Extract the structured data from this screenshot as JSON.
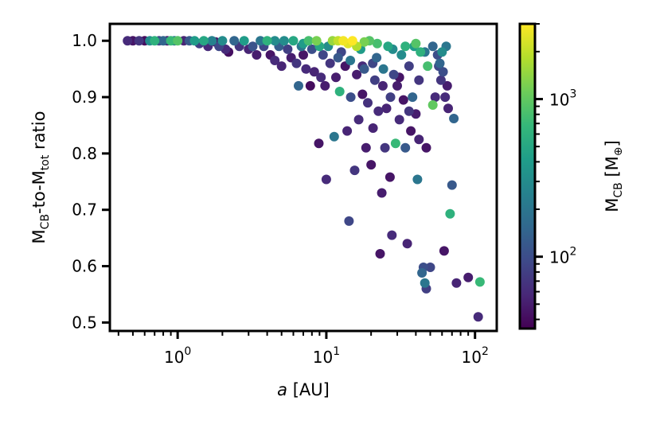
{
  "chart_data": {
    "type": "scatter",
    "title": "",
    "xlabel_italic": "a",
    "xlabel_rest": " [AU]",
    "ylabel_parts": {
      "m1": "M",
      "sub1": "CB",
      "mid": "-to-M",
      "sub2": "tot",
      "end": " ratio"
    },
    "colorbar_label_parts": {
      "main": "M",
      "sub": "CB",
      "open": " [M",
      "sub2": "⊕",
      "close": "]"
    },
    "x_scale": "log",
    "x_range": [
      0.35,
      140
    ],
    "y_range": [
      0.485,
      1.03
    ],
    "color_scale": "log",
    "color_range": [
      35,
      3000
    ],
    "y_ticks": [
      {
        "value": 0.5,
        "label": "0.5"
      },
      {
        "value": 0.6,
        "label": "0.6"
      },
      {
        "value": 0.7,
        "label": "0.7"
      },
      {
        "value": 0.8,
        "label": "0.8"
      },
      {
        "value": 0.9,
        "label": "0.9"
      },
      {
        "value": 1.0,
        "label": "1.0"
      }
    ],
    "x_ticks": [
      {
        "value": 1,
        "base": "10",
        "exp": "0"
      },
      {
        "value": 10,
        "base": "10",
        "exp": "1"
      },
      {
        "value": 100,
        "base": "10",
        "exp": "2"
      }
    ],
    "colorbar_ticks": [
      {
        "value": 100,
        "base": "10",
        "exp": "2"
      },
      {
        "value": 1000,
        "base": "10",
        "exp": "3"
      }
    ],
    "colormap": "viridis",
    "points": [
      {
        "a": 0.46,
        "r": 1.0,
        "m": 60
      },
      {
        "a": 0.5,
        "r": 1.0,
        "m": 45
      },
      {
        "a": 0.55,
        "r": 1.0,
        "m": 70
      },
      {
        "a": 0.6,
        "r": 1.0,
        "m": 40
      },
      {
        "a": 0.65,
        "r": 1.0,
        "m": 300
      },
      {
        "a": 0.7,
        "r": 1.0,
        "m": 600
      },
      {
        "a": 0.75,
        "r": 1.0,
        "m": 90
      },
      {
        "a": 0.8,
        "r": 1.0,
        "m": 150
      },
      {
        "a": 0.85,
        "r": 1.0,
        "m": 50
      },
      {
        "a": 0.9,
        "r": 1.0,
        "m": 700
      },
      {
        "a": 0.95,
        "r": 1.0,
        "m": 200
      },
      {
        "a": 1.0,
        "r": 1.0,
        "m": 900
      },
      {
        "a": 1.1,
        "r": 1.0,
        "m": 55
      },
      {
        "a": 1.2,
        "r": 1.0,
        "m": 120
      },
      {
        "a": 1.3,
        "r": 1.0,
        "m": 400
      },
      {
        "a": 1.4,
        "r": 0.995,
        "m": 80
      },
      {
        "a": 1.5,
        "r": 1.0,
        "m": 500
      },
      {
        "a": 1.6,
        "r": 0.99,
        "m": 60
      },
      {
        "a": 1.7,
        "r": 1.0,
        "m": 250
      },
      {
        "a": 1.8,
        "r": 0.998,
        "m": 45
      },
      {
        "a": 1.9,
        "r": 0.99,
        "m": 90
      },
      {
        "a": 2.0,
        "r": 1.0,
        "m": 300
      },
      {
        "a": 2.1,
        "r": 0.985,
        "m": 60
      },
      {
        "a": 2.2,
        "r": 0.98,
        "m": 42
      },
      {
        "a": 2.4,
        "r": 1.0,
        "m": 150
      },
      {
        "a": 2.6,
        "r": 0.99,
        "m": 70
      },
      {
        "a": 2.8,
        "r": 1.0,
        "m": 400
      },
      {
        "a": 3.0,
        "r": 0.985,
        "m": 55
      },
      {
        "a": 3.2,
        "r": 0.99,
        "m": 110
      },
      {
        "a": 3.4,
        "r": 0.975,
        "m": 50
      },
      {
        "a": 3.6,
        "r": 1.0,
        "m": 200
      },
      {
        "a": 3.8,
        "r": 0.99,
        "m": 90
      },
      {
        "a": 4.0,
        "r": 1.0,
        "m": 600
      },
      {
        "a": 4.2,
        "r": 0.975,
        "m": 45
      },
      {
        "a": 4.5,
        "r": 0.965,
        "m": 60
      },
      {
        "a": 4.8,
        "r": 0.99,
        "m": 130
      },
      {
        "a": 5.0,
        "r": 0.955,
        "m": 55
      },
      {
        "a": 5.2,
        "r": 1.0,
        "m": 300
      },
      {
        "a": 5.5,
        "r": 0.985,
        "m": 80
      },
      {
        "a": 5.8,
        "r": 0.97,
        "m": 50
      },
      {
        "a": 6.0,
        "r": 1.0,
        "m": 500
      },
      {
        "a": 6.3,
        "r": 0.96,
        "m": 70
      },
      {
        "a": 6.5,
        "r": 0.92,
        "m": 150
      },
      {
        "a": 6.8,
        "r": 0.99,
        "m": 200
      },
      {
        "a": 7.0,
        "r": 0.975,
        "m": 45
      },
      {
        "a": 7.3,
        "r": 0.95,
        "m": 60
      },
      {
        "a": 7.6,
        "r": 1.0,
        "m": 800
      },
      {
        "a": 7.8,
        "r": 0.92,
        "m": 40
      },
      {
        "a": 8.0,
        "r": 0.985,
        "m": 100
      },
      {
        "a": 8.3,
        "r": 0.945,
        "m": 55
      },
      {
        "a": 8.6,
        "r": 1.0,
        "m": 1200
      },
      {
        "a": 8.9,
        "r": 0.818,
        "m": 45
      },
      {
        "a": 9.2,
        "r": 0.935,
        "m": 60
      },
      {
        "a": 9.5,
        "r": 0.975,
        "m": 90
      },
      {
        "a": 9.8,
        "r": 0.92,
        "m": 50
      },
      {
        "a": 10.0,
        "r": 0.754,
        "m": 60
      },
      {
        "a": 10.3,
        "r": 0.99,
        "m": 300
      },
      {
        "a": 10.6,
        "r": 0.96,
        "m": 70
      },
      {
        "a": 11.0,
        "r": 1.0,
        "m": 1500
      },
      {
        "a": 11.3,
        "r": 0.83,
        "m": 200
      },
      {
        "a": 11.6,
        "r": 0.935,
        "m": 50
      },
      {
        "a": 12.0,
        "r": 1.0,
        "m": 2000
      },
      {
        "a": 12.3,
        "r": 0.91,
        "m": 600
      },
      {
        "a": 12.6,
        "r": 0.98,
        "m": 90
      },
      {
        "a": 13.0,
        "r": 1.0,
        "m": 2800
      },
      {
        "a": 13.4,
        "r": 0.955,
        "m": 45
      },
      {
        "a": 13.8,
        "r": 0.84,
        "m": 55
      },
      {
        "a": 14.2,
        "r": 0.68,
        "m": 90
      },
      {
        "a": 14.6,
        "r": 0.9,
        "m": 100
      },
      {
        "a": 15.0,
        "r": 1.0,
        "m": 3000
      },
      {
        "a": 15.5,
        "r": 0.77,
        "m": 70
      },
      {
        "a": 16.0,
        "r": 0.94,
        "m": 50
      },
      {
        "a": 16.5,
        "r": 0.86,
        "m": 60
      },
      {
        "a": 17.0,
        "r": 0.985,
        "m": 400
      },
      {
        "a": 17.5,
        "r": 0.905,
        "m": 45
      },
      {
        "a": 18.0,
        "r": 0.95,
        "m": 120
      },
      {
        "a": 18.5,
        "r": 0.81,
        "m": 50
      },
      {
        "a": 19.0,
        "r": 0.89,
        "m": 65
      },
      {
        "a": 19.5,
        "r": 1.0,
        "m": 900
      },
      {
        "a": 20.0,
        "r": 0.78,
        "m": 45
      },
      {
        "a": 20.6,
        "r": 0.845,
        "m": 55
      },
      {
        "a": 21.2,
        "r": 0.93,
        "m": 80
      },
      {
        "a": 21.8,
        "r": 0.97,
        "m": 150
      },
      {
        "a": 22.4,
        "r": 0.875,
        "m": 60
      },
      {
        "a": 23.0,
        "r": 0.622,
        "m": 45
      },
      {
        "a": 23.6,
        "r": 0.73,
        "m": 50
      },
      {
        "a": 24.2,
        "r": 0.95,
        "m": 200
      },
      {
        "a": 24.8,
        "r": 0.81,
        "m": 70
      },
      {
        "a": 25.4,
        "r": 0.88,
        "m": 55
      },
      {
        "a": 26.0,
        "r": 0.99,
        "m": 500
      },
      {
        "a": 26.8,
        "r": 0.758,
        "m": 45
      },
      {
        "a": 27.6,
        "r": 0.655,
        "m": 60
      },
      {
        "a": 28.4,
        "r": 0.94,
        "m": 90
      },
      {
        "a": 29.2,
        "r": 0.818,
        "m": 700
      },
      {
        "a": 30.0,
        "r": 0.92,
        "m": 50
      },
      {
        "a": 31.0,
        "r": 0.86,
        "m": 60
      },
      {
        "a": 32.0,
        "r": 0.975,
        "m": 300
      },
      {
        "a": 33.0,
        "r": 0.895,
        "m": 45
      },
      {
        "a": 34.0,
        "r": 0.81,
        "m": 120
      },
      {
        "a": 35.0,
        "r": 0.64,
        "m": 55
      },
      {
        "a": 36.0,
        "r": 0.955,
        "m": 80
      },
      {
        "a": 37.0,
        "r": 0.84,
        "m": 45
      },
      {
        "a": 38.0,
        "r": 0.9,
        "m": 150
      },
      {
        "a": 39.0,
        "r": 0.99,
        "m": 400
      },
      {
        "a": 40.0,
        "r": 0.87,
        "m": 50
      },
      {
        "a": 41.0,
        "r": 0.754,
        "m": 200
      },
      {
        "a": 42.0,
        "r": 0.93,
        "m": 70
      },
      {
        "a": 43.0,
        "r": 0.98,
        "m": 600
      },
      {
        "a": 44.0,
        "r": 0.588,
        "m": 150
      },
      {
        "a": 45.0,
        "r": 0.598,
        "m": 100
      },
      {
        "a": 46.0,
        "r": 0.57,
        "m": 200
      },
      {
        "a": 47.0,
        "r": 0.56,
        "m": 80
      },
      {
        "a": 48.0,
        "r": 0.955,
        "m": 800
      },
      {
        "a": 50.0,
        "r": 0.598,
        "m": 90
      },
      {
        "a": 52.0,
        "r": 0.886,
        "m": 1000
      },
      {
        "a": 54.0,
        "r": 0.9,
        "m": 60
      },
      {
        "a": 56.0,
        "r": 0.975,
        "m": 100
      },
      {
        "a": 58.0,
        "r": 0.96,
        "m": 150
      },
      {
        "a": 60.0,
        "r": 0.98,
        "m": 300
      },
      {
        "a": 62.0,
        "r": 0.627,
        "m": 45
      },
      {
        "a": 64.0,
        "r": 0.99,
        "m": 200
      },
      {
        "a": 66.0,
        "r": 0.88,
        "m": 55
      },
      {
        "a": 68.0,
        "r": 0.693,
        "m": 600
      },
      {
        "a": 70.0,
        "r": 0.744,
        "m": 120
      },
      {
        "a": 72.0,
        "r": 0.862,
        "m": 150
      },
      {
        "a": 75.0,
        "r": 0.57,
        "m": 55
      },
      {
        "a": 90.0,
        "r": 0.58,
        "m": 50
      },
      {
        "a": 105.0,
        "r": 0.51,
        "m": 60
      },
      {
        "a": 108.0,
        "r": 0.572,
        "m": 700
      },
      {
        "a": 4.5,
        "r": 1.0,
        "m": 300
      },
      {
        "a": 7.0,
        "r": 0.995,
        "m": 400
      },
      {
        "a": 9.0,
        "r": 0.99,
        "m": 500
      },
      {
        "a": 14.0,
        "r": 0.995,
        "m": 2500
      },
      {
        "a": 16.0,
        "r": 0.99,
        "m": 1800
      },
      {
        "a": 18.0,
        "r": 0.998,
        "m": 1200
      },
      {
        "a": 22.0,
        "r": 0.995,
        "m": 800
      },
      {
        "a": 28.0,
        "r": 0.985,
        "m": 300
      },
      {
        "a": 34.0,
        "r": 0.99,
        "m": 600
      },
      {
        "a": 40.0,
        "r": 0.995,
        "m": 900
      },
      {
        "a": 46.0,
        "r": 0.98,
        "m": 200
      },
      {
        "a": 52.0,
        "r": 0.99,
        "m": 150
      },
      {
        "a": 57.0,
        "r": 0.955,
        "m": 90
      },
      {
        "a": 59.0,
        "r": 0.93,
        "m": 70
      },
      {
        "a": 61.0,
        "r": 0.945,
        "m": 100
      },
      {
        "a": 63.0,
        "r": 0.9,
        "m": 60
      },
      {
        "a": 65.0,
        "r": 0.92,
        "m": 50
      },
      {
        "a": 12.0,
        "r": 0.97,
        "m": 120
      },
      {
        "a": 14.5,
        "r": 0.965,
        "m": 200
      },
      {
        "a": 17.5,
        "r": 0.955,
        "m": 60
      },
      {
        "a": 20.5,
        "r": 0.96,
        "m": 90
      },
      {
        "a": 24.0,
        "r": 0.92,
        "m": 55
      },
      {
        "a": 27.0,
        "r": 0.9,
        "m": 80
      },
      {
        "a": 31.0,
        "r": 0.935,
        "m": 45
      },
      {
        "a": 36.0,
        "r": 0.875,
        "m": 70
      },
      {
        "a": 42.0,
        "r": 0.825,
        "m": 55
      },
      {
        "a": 47.0,
        "r": 0.81,
        "m": 45
      }
    ]
  }
}
